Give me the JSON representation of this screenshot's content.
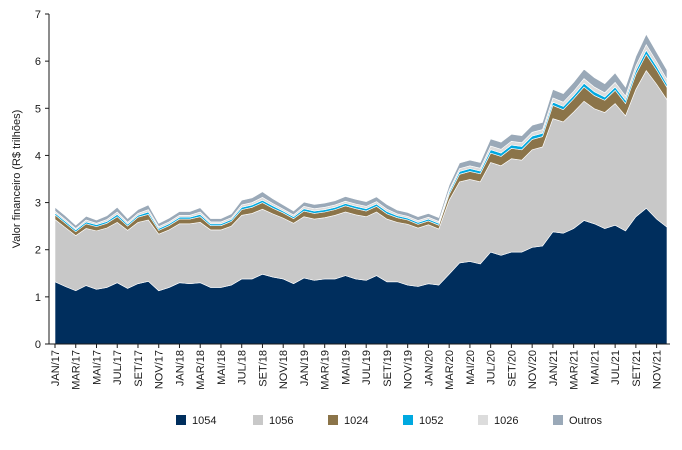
{
  "chart_data": {
    "type": "area",
    "stacked": true,
    "ylabel": "Valor financeiro (R$ trilhões)",
    "ylim": [
      0,
      7
    ],
    "yticks": [
      0,
      1,
      2,
      3,
      4,
      5,
      6,
      7
    ],
    "grid": false,
    "legend_position": "bottom",
    "x_labels": [
      "JAN/17",
      "MAR/17",
      "MAI/17",
      "JUL/17",
      "SET/17",
      "NOV/17",
      "JAN/18",
      "MAR/18",
      "MAI/18",
      "JUL/18",
      "SET/18",
      "NOV/18",
      "JAN/19",
      "MAR/19",
      "MAI/19",
      "JUL/19",
      "SET/19",
      "NOV/19",
      "JAN/20",
      "MAR/20",
      "MAI/20",
      "JUL/20",
      "SET/20",
      "NOV/20",
      "JAN/21",
      "MAR/21",
      "MAI/21",
      "JUL/21",
      "SET/21",
      "NOV/21"
    ],
    "x_months": [
      "2017-01",
      "2017-02",
      "2017-03",
      "2017-04",
      "2017-05",
      "2017-06",
      "2017-07",
      "2017-08",
      "2017-09",
      "2017-10",
      "2017-11",
      "2017-12",
      "2018-01",
      "2018-02",
      "2018-03",
      "2018-04",
      "2018-05",
      "2018-06",
      "2018-07",
      "2018-08",
      "2018-09",
      "2018-10",
      "2018-11",
      "2018-12",
      "2019-01",
      "2019-02",
      "2019-03",
      "2019-04",
      "2019-05",
      "2019-06",
      "2019-07",
      "2019-08",
      "2019-09",
      "2019-10",
      "2019-11",
      "2019-12",
      "2020-01",
      "2020-02",
      "2020-03",
      "2020-04",
      "2020-05",
      "2020-06",
      "2020-07",
      "2020-08",
      "2020-09",
      "2020-10",
      "2020-11",
      "2020-12",
      "2021-01",
      "2021-02",
      "2021-03",
      "2021-04",
      "2021-05",
      "2021-06",
      "2021-07",
      "2021-08",
      "2021-09",
      "2021-10",
      "2021-11",
      "2021-12"
    ],
    "series": [
      {
        "name": "1054",
        "color": "#002e5d",
        "values": [
          1.32,
          1.22,
          1.13,
          1.24,
          1.16,
          1.2,
          1.3,
          1.18,
          1.28,
          1.33,
          1.13,
          1.2,
          1.3,
          1.28,
          1.3,
          1.2,
          1.2,
          1.25,
          1.38,
          1.38,
          1.48,
          1.42,
          1.38,
          1.28,
          1.4,
          1.35,
          1.38,
          1.38,
          1.45,
          1.38,
          1.35,
          1.45,
          1.32,
          1.32,
          1.25,
          1.22,
          1.28,
          1.25,
          1.48,
          1.72,
          1.75,
          1.7,
          1.95,
          1.88,
          1.95,
          1.95,
          2.05,
          2.08,
          2.38,
          2.35,
          2.45,
          2.62,
          2.55,
          2.45,
          2.52,
          2.4,
          2.7,
          2.88,
          2.65,
          2.48
        ]
      },
      {
        "name": "1056",
        "color": "#c8c8c8",
        "values": [
          1.32,
          1.25,
          1.17,
          1.21,
          1.24,
          1.26,
          1.28,
          1.23,
          1.3,
          1.3,
          1.2,
          1.22,
          1.25,
          1.27,
          1.28,
          1.22,
          1.22,
          1.25,
          1.35,
          1.39,
          1.38,
          1.34,
          1.29,
          1.28,
          1.3,
          1.3,
          1.3,
          1.35,
          1.35,
          1.36,
          1.35,
          1.35,
          1.33,
          1.26,
          1.29,
          1.24,
          1.25,
          1.19,
          1.57,
          1.72,
          1.74,
          1.74,
          1.9,
          1.9,
          1.98,
          1.95,
          2.07,
          2.1,
          2.4,
          2.36,
          2.47,
          2.53,
          2.44,
          2.46,
          2.58,
          2.44,
          2.7,
          2.92,
          2.86,
          2.7
        ]
      },
      {
        "name": "1024",
        "color": "#8b7449",
        "values": [
          0.1,
          0.09,
          0.08,
          0.1,
          0.09,
          0.1,
          0.12,
          0.09,
          0.11,
          0.12,
          0.08,
          0.09,
          0.1,
          0.1,
          0.12,
          0.09,
          0.09,
          0.1,
          0.12,
          0.13,
          0.14,
          0.12,
          0.11,
          0.1,
          0.12,
          0.12,
          0.12,
          0.12,
          0.13,
          0.13,
          0.12,
          0.12,
          0.11,
          0.1,
          0.09,
          0.08,
          0.08,
          0.08,
          0.12,
          0.16,
          0.17,
          0.17,
          0.2,
          0.2,
          0.22,
          0.22,
          0.22,
          0.22,
          0.28,
          0.26,
          0.28,
          0.3,
          0.28,
          0.26,
          0.28,
          0.26,
          0.32,
          0.34,
          0.3,
          0.26
        ]
      },
      {
        "name": "1052",
        "color": "#00a9e0",
        "values": [
          0.04,
          0.04,
          0.04,
          0.04,
          0.04,
          0.04,
          0.05,
          0.04,
          0.04,
          0.05,
          0.04,
          0.04,
          0.04,
          0.04,
          0.05,
          0.04,
          0.04,
          0.04,
          0.05,
          0.05,
          0.05,
          0.05,
          0.04,
          0.04,
          0.05,
          0.05,
          0.05,
          0.05,
          0.05,
          0.05,
          0.05,
          0.05,
          0.05,
          0.04,
          0.04,
          0.04,
          0.04,
          0.04,
          0.05,
          0.06,
          0.06,
          0.06,
          0.07,
          0.07,
          0.07,
          0.07,
          0.07,
          0.07,
          0.07,
          0.07,
          0.07,
          0.08,
          0.08,
          0.07,
          0.07,
          0.07,
          0.08,
          0.09,
          0.08,
          0.07
        ]
      },
      {
        "name": "1026",
        "color": "#dcdcdc",
        "values": [
          0.04,
          0.04,
          0.03,
          0.04,
          0.03,
          0.04,
          0.05,
          0.04,
          0.04,
          0.05,
          0.04,
          0.04,
          0.04,
          0.04,
          0.05,
          0.04,
          0.04,
          0.04,
          0.05,
          0.05,
          0.06,
          0.05,
          0.04,
          0.04,
          0.05,
          0.05,
          0.05,
          0.05,
          0.05,
          0.05,
          0.05,
          0.05,
          0.05,
          0.04,
          0.04,
          0.04,
          0.04,
          0.04,
          0.05,
          0.06,
          0.06,
          0.06,
          0.08,
          0.08,
          0.08,
          0.08,
          0.08,
          0.08,
          0.09,
          0.09,
          0.09,
          0.1,
          0.1,
          0.09,
          0.1,
          0.09,
          0.1,
          0.12,
          0.1,
          0.1
        ]
      },
      {
        "name": "Outros",
        "color": "#9aa9b8",
        "values": [
          0.08,
          0.08,
          0.07,
          0.08,
          0.07,
          0.08,
          0.1,
          0.08,
          0.08,
          0.1,
          0.07,
          0.08,
          0.08,
          0.08,
          0.09,
          0.07,
          0.07,
          0.08,
          0.1,
          0.1,
          0.12,
          0.1,
          0.09,
          0.08,
          0.09,
          0.09,
          0.09,
          0.09,
          0.1,
          0.1,
          0.1,
          0.1,
          0.1,
          0.08,
          0.08,
          0.08,
          0.08,
          0.08,
          0.1,
          0.12,
          0.12,
          0.12,
          0.15,
          0.15,
          0.15,
          0.15,
          0.15,
          0.15,
          0.18,
          0.18,
          0.19,
          0.2,
          0.2,
          0.19,
          0.2,
          0.19,
          0.2,
          0.22,
          0.2,
          0.2
        ]
      }
    ]
  }
}
